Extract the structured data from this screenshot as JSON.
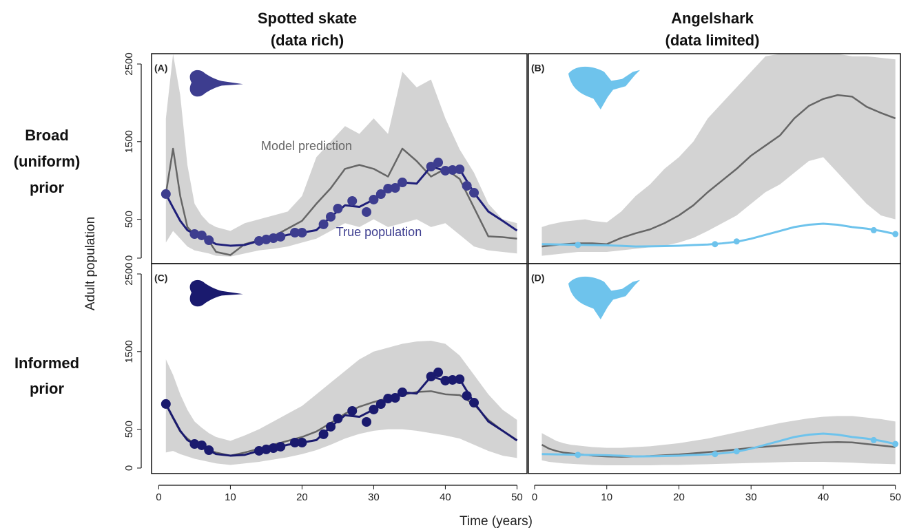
{
  "column_titles": [
    [
      "Spotted skate",
      "(data rich)"
    ],
    [
      "Angelshark",
      "(data limited)"
    ]
  ],
  "row_labels": [
    [
      "Broad",
      "(uniform)",
      "prior"
    ],
    [
      "Informed",
      "prior"
    ]
  ],
  "ylabel": "Adult population",
  "xlabel": "Time (years)",
  "chart_data": [
    {
      "type": "line",
      "label": "(A)",
      "xlim": [
        -1,
        51.4
      ],
      "ylim": [
        -71,
        2633
      ],
      "yticks": [
        0,
        500,
        1500,
        2500
      ],
      "x": [
        1,
        2,
        3,
        4,
        5,
        6,
        7,
        8,
        10,
        12,
        14,
        16,
        18,
        20,
        22,
        24,
        26,
        28,
        30,
        32,
        34,
        36,
        38,
        40,
        42,
        44,
        46,
        48,
        50
      ],
      "band": {
        "color": "#d3d3d3",
        "upper": [
          1800,
          2630,
          2100,
          1200,
          700,
          550,
          450,
          400,
          350,
          450,
          500,
          550,
          600,
          800,
          1300,
          1500,
          1700,
          1600,
          1800,
          1600,
          2400,
          2200,
          2300,
          1800,
          1400,
          1100,
          700,
          500,
          450
        ],
        "lower": [
          200,
          350,
          250,
          150,
          100,
          80,
          60,
          30,
          20,
          60,
          100,
          120,
          150,
          200,
          250,
          350,
          450,
          400,
          500,
          400,
          450,
          500,
          400,
          450,
          300,
          150,
          100,
          80,
          60
        ]
      },
      "series": [
        {
          "color": "#666666",
          "values": [
            830,
            1410,
            800,
            400,
            300,
            270,
            220,
            80,
            40,
            180,
            230,
            280,
            380,
            480,
            700,
            900,
            1150,
            1200,
            1150,
            1050,
            1410,
            1250,
            1050,
            1150,
            1020,
            650,
            280,
            270,
            250
          ]
        },
        {
          "color": "#1f1f7a",
          "values": [
            825,
            650,
            480,
            360,
            310,
            293,
            230,
            180,
            160,
            170,
            222,
            257,
            300,
            328,
            360,
            532,
            680,
            660,
            754,
            895,
            975,
            960,
            1179,
            1126,
            1144,
            842,
            600,
            480,
            355
          ]
        }
      ],
      "points": {
        "color": "#3d3d8f",
        "x": [
          1,
          5,
          6,
          7,
          14,
          15,
          16,
          17,
          19,
          20,
          23,
          24,
          25,
          27,
          29,
          30,
          31,
          32,
          33,
          34,
          38,
          39,
          40,
          41,
          42,
          43,
          44
        ],
        "values": [
          825,
          310,
          293,
          230,
          222,
          240,
          257,
          275,
          328,
          328,
          435,
          532,
          638,
          736,
          594,
          754,
          824,
          895,
          904,
          975,
          1179,
          1232,
          1126,
          1135,
          1144,
          931,
          842
        ]
      },
      "annotations": [
        "Model prediction",
        "True population"
      ]
    },
    {
      "type": "line",
      "label": "(B)",
      "xlim": [
        -0.86,
        50.7
      ],
      "ylim": [
        -71,
        2633
      ],
      "x": [
        1,
        2,
        3,
        4,
        5,
        6,
        7,
        8,
        10,
        12,
        14,
        16,
        18,
        20,
        22,
        24,
        26,
        28,
        30,
        32,
        34,
        36,
        38,
        40,
        42,
        44,
        46,
        48,
        50
      ],
      "band": {
        "color": "#d3d3d3",
        "upper": [
          400,
          430,
          450,
          470,
          480,
          490,
          500,
          480,
          460,
          600,
          800,
          950,
          1150,
          1300,
          1500,
          1800,
          2000,
          2200,
          2400,
          2600,
          2630,
          2630,
          2630,
          2630,
          2630,
          2600,
          2600,
          2580,
          2560
        ],
        "lower": [
          30,
          40,
          50,
          60,
          70,
          80,
          80,
          80,
          80,
          100,
          120,
          140,
          160,
          200,
          260,
          350,
          450,
          550,
          700,
          850,
          950,
          1100,
          1250,
          1300,
          1100,
          900,
          700,
          550,
          500
        ]
      },
      "series": [
        {
          "color": "#666666",
          "values": [
            150,
            160,
            170,
            180,
            185,
            190,
            190,
            190,
            180,
            260,
            320,
            370,
            450,
            550,
            680,
            850,
            1000,
            1150,
            1320,
            1450,
            1580,
            1800,
            1960,
            2050,
            2100,
            2080,
            1950,
            1870,
            1800
          ]
        },
        {
          "color": "#6ec3ec",
          "values": [
            180,
            178,
            176,
            175,
            173,
            172,
            170,
            168,
            165,
            158,
            150,
            152,
            155,
            160,
            168,
            175,
            190,
            210,
            250,
            300,
            350,
            400,
            430,
            443,
            430,
            400,
            380,
            350,
            310
          ]
        }
      ],
      "points": {
        "color": "#6ec3ec",
        "x": [
          6,
          25,
          28,
          47,
          50
        ],
        "values": [
          170,
          180,
          215,
          360,
          310
        ]
      }
    },
    {
      "type": "line",
      "label": "(C)",
      "xlim": [
        -1,
        51.4
      ],
      "ylim": [
        -71,
        2633
      ],
      "yticks": [
        0,
        500,
        1500,
        2500
      ],
      "xticks": [
        0,
        10,
        20,
        30,
        40,
        50
      ],
      "x": [
        1,
        2,
        3,
        4,
        5,
        6,
        7,
        8,
        10,
        12,
        14,
        16,
        18,
        20,
        22,
        24,
        26,
        28,
        30,
        32,
        34,
        36,
        38,
        40,
        42,
        44,
        46,
        48,
        50
      ],
      "band": {
        "color": "#d3d3d3",
        "upper": [
          1400,
          1200,
          950,
          750,
          600,
          520,
          450,
          400,
          350,
          420,
          500,
          600,
          700,
          800,
          950,
          1100,
          1250,
          1400,
          1500,
          1550,
          1600,
          1630,
          1640,
          1600,
          1450,
          1200,
          950,
          750,
          620
        ],
        "lower": [
          200,
          220,
          180,
          150,
          120,
          100,
          80,
          60,
          40,
          60,
          80,
          110,
          140,
          180,
          230,
          300,
          380,
          440,
          480,
          500,
          500,
          480,
          450,
          420,
          380,
          300,
          220,
          160,
          130
        ]
      },
      "series": [
        {
          "color": "#666666",
          "values": [
            820,
            640,
            470,
            380,
            310,
            280,
            230,
            200,
            160,
            200,
            250,
            300,
            350,
            400,
            470,
            580,
            700,
            790,
            850,
            900,
            940,
            980,
            990,
            950,
            940,
            820,
            620,
            480,
            360
          ]
        },
        {
          "color": "#1a1a6e",
          "values": [
            825,
            650,
            480,
            360,
            310,
            293,
            230,
            180,
            160,
            170,
            222,
            257,
            300,
            328,
            360,
            532,
            680,
            660,
            754,
            895,
            975,
            960,
            1179,
            1126,
            1144,
            842,
            600,
            480,
            355
          ]
        }
      ],
      "points": {
        "color": "#1a1a6e",
        "x": [
          1,
          5,
          6,
          7,
          14,
          15,
          16,
          17,
          19,
          20,
          23,
          24,
          25,
          27,
          29,
          30,
          31,
          32,
          33,
          34,
          38,
          39,
          40,
          41,
          42,
          43,
          44
        ],
        "values": [
          825,
          310,
          293,
          230,
          222,
          240,
          257,
          275,
          328,
          328,
          435,
          532,
          638,
          736,
          594,
          754,
          824,
          895,
          904,
          975,
          1179,
          1232,
          1126,
          1135,
          1144,
          931,
          842
        ]
      }
    },
    {
      "type": "line",
      "label": "(D)",
      "xlim": [
        -0.86,
        50.7
      ],
      "ylim": [
        -71,
        2633
      ],
      "xticks": [
        0,
        10,
        20,
        30,
        40,
        50
      ],
      "x": [
        1,
        2,
        3,
        4,
        5,
        6,
        7,
        8,
        10,
        12,
        14,
        16,
        18,
        20,
        22,
        24,
        26,
        28,
        30,
        32,
        34,
        36,
        38,
        40,
        42,
        44,
        46,
        48,
        50
      ],
      "band": {
        "color": "#d3d3d3",
        "upper": [
          450,
          400,
          350,
          320,
          300,
          290,
          280,
          270,
          260,
          260,
          270,
          280,
          300,
          320,
          350,
          380,
          420,
          460,
          500,
          540,
          580,
          610,
          640,
          660,
          670,
          670,
          650,
          630,
          600
        ],
        "lower": [
          100,
          80,
          70,
          60,
          55,
          50,
          45,
          40,
          35,
          35,
          35,
          35,
          40,
          40,
          45,
          50,
          55,
          60,
          65,
          70,
          75,
          80,
          80,
          80,
          75,
          70,
          60,
          55,
          50
        ]
      },
      "series": [
        {
          "color": "#666666",
          "values": [
            300,
            250,
            220,
            200,
            190,
            180,
            170,
            160,
            150,
            145,
            150,
            155,
            165,
            175,
            190,
            205,
            220,
            240,
            260,
            275,
            290,
            305,
            320,
            330,
            335,
            330,
            310,
            290,
            270
          ]
        },
        {
          "color": "#6ec3ec",
          "values": [
            180,
            178,
            176,
            175,
            173,
            172,
            170,
            168,
            165,
            158,
            150,
            152,
            155,
            160,
            168,
            175,
            190,
            210,
            250,
            300,
            350,
            400,
            430,
            443,
            430,
            400,
            380,
            350,
            310
          ]
        }
      ],
      "points": {
        "color": "#6ec3ec",
        "x": [
          6,
          25,
          28,
          47,
          50
        ],
        "values": [
          170,
          180,
          215,
          360,
          310
        ]
      }
    }
  ]
}
